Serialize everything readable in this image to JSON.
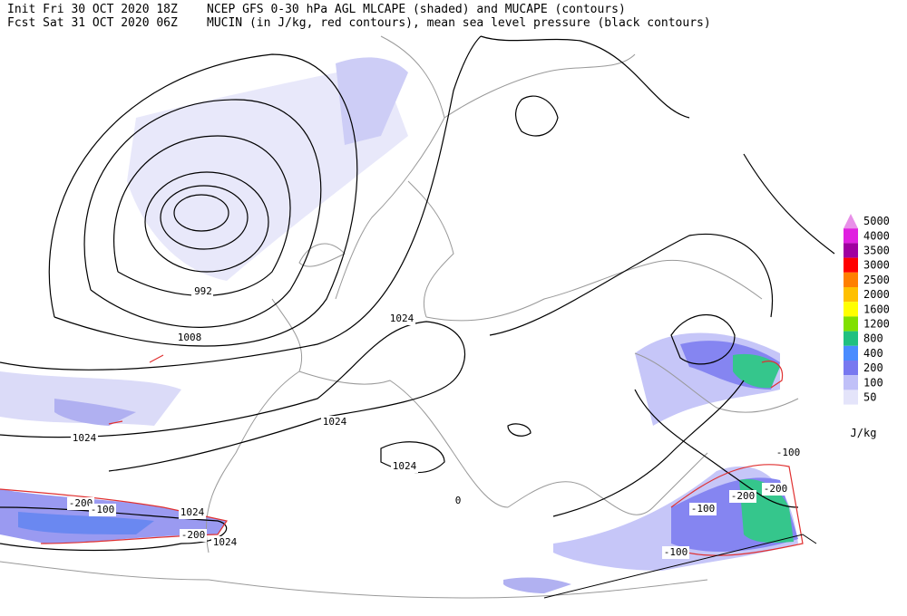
{
  "header": {
    "init": "Init  Fri 30 OCT 2020 18Z",
    "fcst": "Fcst Sat 31 OCT 2020 06Z",
    "title_line1": "NCEP GFS 0-30 hPa AGL MLCAPE (shaded) and MUCAPE (contours)",
    "title_line2": "MUCIN (in J/kg, red contours), mean sea level pressure (black contours)"
  },
  "legend": {
    "unit": "J/kg",
    "levels": [
      {
        "label": 5000,
        "color": "#e890e8"
      },
      {
        "label": 4000,
        "color": "#e020e0"
      },
      {
        "label": 3500,
        "color": "#a000a0"
      },
      {
        "label": 3000,
        "color": "#ff0000"
      },
      {
        "label": 2500,
        "color": "#ff7f00"
      },
      {
        "label": 2000,
        "color": "#ffc000"
      },
      {
        "label": 1600,
        "color": "#ffff00"
      },
      {
        "label": 1200,
        "color": "#80e000"
      },
      {
        "label": 800,
        "color": "#20c080"
      },
      {
        "label": 400,
        "color": "#4a8cff"
      },
      {
        "label": 200,
        "color": "#7878f0"
      },
      {
        "label": 100,
        "color": "#c0c0f8"
      },
      {
        "label": 50,
        "color": "#e4e4fa"
      }
    ]
  },
  "pressure_labels": [
    992,
    1008,
    1024,
    1024,
    1024,
    1024,
    1024,
    1024,
    0
  ],
  "cin_labels": [
    -200,
    -100,
    -200,
    -100,
    -200,
    -200,
    -100,
    -100
  ]
}
